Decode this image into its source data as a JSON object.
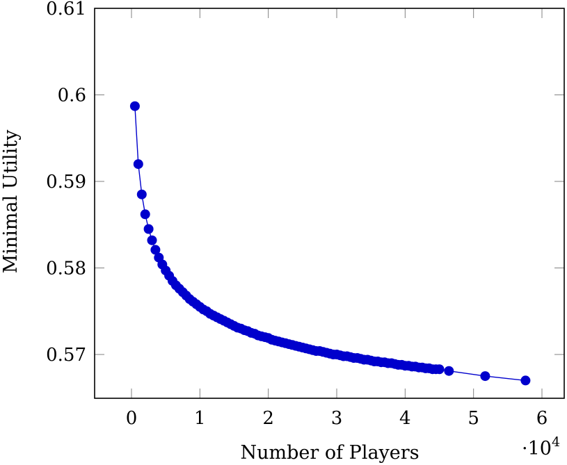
{
  "chart_data": {
    "type": "line",
    "title": "",
    "xlabel": "Number of Players",
    "ylabel": "Minimal Utility",
    "x_scale_label": "·10",
    "x_scale_exponent": "4",
    "xlim": [
      -5000,
      63500
    ],
    "ylim": [
      0.565,
      0.61
    ],
    "xticks": [
      0,
      10000,
      20000,
      30000,
      40000,
      50000,
      60000
    ],
    "xtick_labels": [
      "0",
      "1",
      "2",
      "3",
      "4",
      "5",
      "6"
    ],
    "yticks": [
      0.57,
      0.58,
      0.59,
      0.6,
      0.61
    ],
    "ytick_labels": [
      "0.57",
      "0.58",
      "0.59",
      "0.6",
      "0.61"
    ],
    "grid": false,
    "legend": null,
    "series": [
      {
        "name": "Minimal Utility",
        "color": "#0000CC",
        "marker": "circle",
        "x": [
          500,
          1000,
          1500,
          2000,
          2500,
          3000,
          3500,
          4000,
          4500,
          5000,
          5500,
          6000,
          6500,
          7000,
          7500,
          8000,
          8500,
          9000,
          9500,
          10000,
          10500,
          11000,
          11500,
          12000,
          12500,
          13000,
          13500,
          14000,
          14500,
          15000,
          15500,
          16000,
          16500,
          17000,
          17500,
          18000,
          18500,
          19000,
          19500,
          20000,
          20500,
          21000,
          21500,
          22000,
          22500,
          23000,
          23500,
          24000,
          24500,
          25000,
          25500,
          26000,
          26500,
          27000,
          27500,
          28000,
          28500,
          29000,
          29500,
          30000,
          30500,
          31000,
          31500,
          32000,
          32500,
          33000,
          33500,
          34000,
          34500,
          35000,
          35500,
          36000,
          36500,
          37000,
          37500,
          38000,
          38500,
          39000,
          39500,
          40000,
          40500,
          41000,
          41500,
          42000,
          42500,
          43000,
          43500,
          44000,
          44500,
          45000,
          46400,
          51700,
          57600
        ],
        "y": [
          0.5987,
          0.592,
          0.5885,
          0.5862,
          0.5845,
          0.5832,
          0.5821,
          0.5812,
          0.5804,
          0.5797,
          0.5791,
          0.5785,
          0.578,
          0.5776,
          0.5772,
          0.5768,
          0.5764,
          0.5761,
          0.5758,
          0.5755,
          0.5752,
          0.575,
          0.5747,
          0.5745,
          0.5743,
          0.5741,
          0.5739,
          0.5737,
          0.5735,
          0.5733,
          0.5731,
          0.573,
          0.5728,
          0.5727,
          0.5725,
          0.5724,
          0.5722,
          0.5721,
          0.572,
          0.5719,
          0.5717,
          0.5716,
          0.5715,
          0.5714,
          0.5713,
          0.5712,
          0.5711,
          0.571,
          0.5709,
          0.5708,
          0.5707,
          0.5706,
          0.5705,
          0.5704,
          0.5704,
          0.5703,
          0.5702,
          0.5701,
          0.57,
          0.57,
          0.5699,
          0.5698,
          0.5698,
          0.5697,
          0.5696,
          0.5696,
          0.5695,
          0.5694,
          0.5694,
          0.5693,
          0.5692,
          0.5692,
          0.5691,
          0.5691,
          0.569,
          0.569,
          0.5689,
          0.5688,
          0.5688,
          0.5687,
          0.5687,
          0.5686,
          0.5686,
          0.5685,
          0.5685,
          0.5684,
          0.5684,
          0.5683,
          0.5683,
          0.5683,
          0.5681,
          0.5675,
          0.567
        ]
      }
    ]
  },
  "colors": {
    "series": "#0000CC",
    "axis": "#000000",
    "tick": "#808080"
  }
}
